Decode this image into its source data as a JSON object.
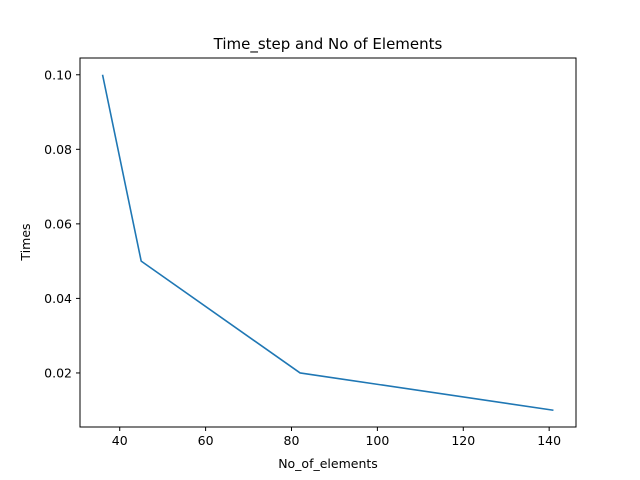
{
  "chart_data": {
    "type": "line",
    "title": "Time_step and No of Elements",
    "xlabel": "No_of_elements",
    "ylabel": "Times",
    "xlim": [
      30.75,
      146.25
    ],
    "ylim": [
      0.0055,
      0.1045
    ],
    "xticks": [
      40,
      60,
      80,
      100,
      120,
      140
    ],
    "yticks": [
      0.02,
      0.04,
      0.06,
      0.08,
      0.1
    ],
    "ytick_labels": [
      "0.02",
      "0.04",
      "0.06",
      "0.08",
      "0.10"
    ],
    "grid": false,
    "series": [
      {
        "color": "#1f77b4",
        "x": [
          36,
          45,
          82,
          141
        ],
        "y": [
          0.1,
          0.05,
          0.02,
          0.01
        ]
      }
    ]
  }
}
